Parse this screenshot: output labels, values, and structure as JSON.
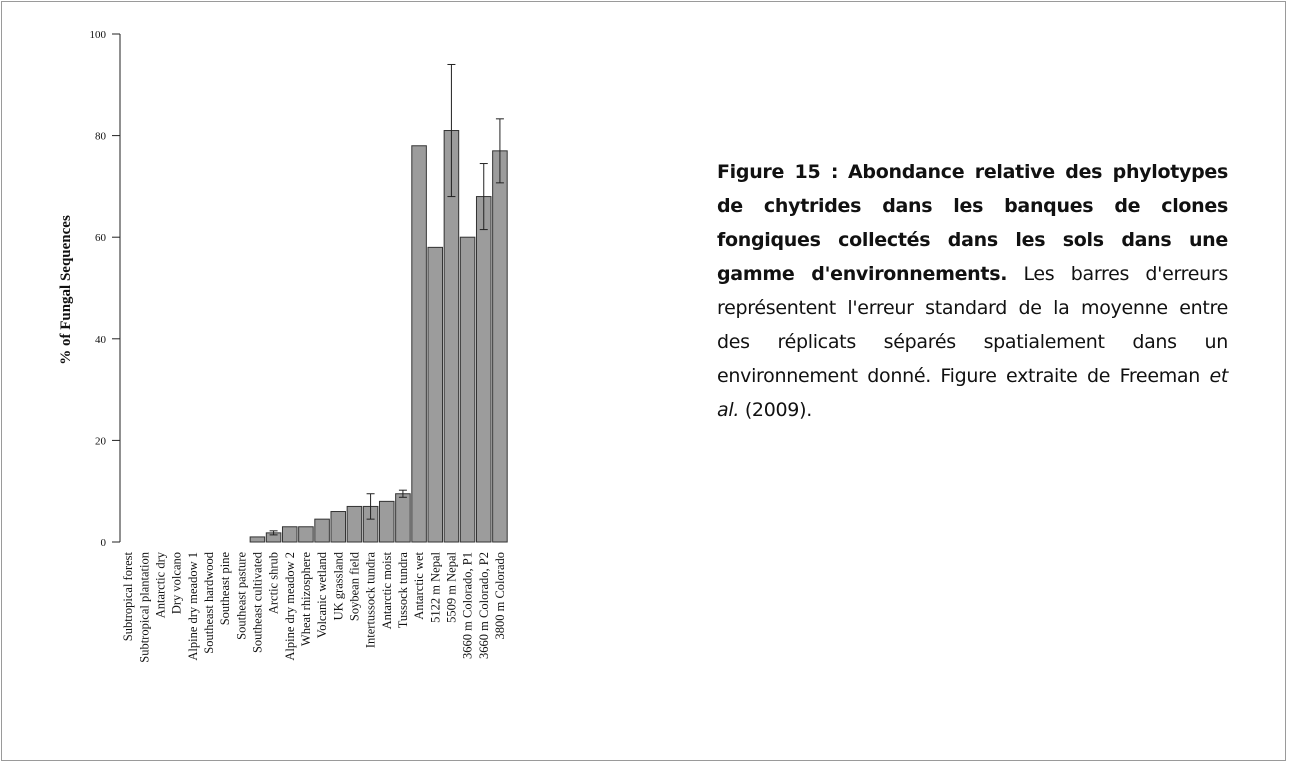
{
  "chart_data": {
    "type": "bar",
    "ylabel": "% of Fungal Sequences",
    "categories": [
      "Subtropical forest",
      "Subtropical plantation",
      "Antarctic dry",
      "Dry  volcano",
      "Alpine dry meadow 1",
      "Southeast hardwood",
      "Southeast pine",
      "Southeast pasture",
      "Southeast cultivated",
      "Arctic shrub",
      "Alpine dry meadow 2",
      "Wheat rhizosphere",
      "Volcanic wetland",
      "UK grassland",
      "Soybean field",
      "Intertussock tundra",
      "Antarctic moist",
      "Tussock tundra",
      "Antarctic wet",
      "5122 m Nepal",
      "5509 m Nepal",
      "3660 m Colorado, P1",
      "3660 m Colorado, P2",
      "3800 m Colorado"
    ],
    "values": [
      0,
      0,
      0,
      0,
      0,
      0,
      0,
      0,
      1,
      1.8,
      3,
      3,
      4.5,
      6,
      7,
      7,
      8,
      9.5,
      78,
      58,
      81,
      60,
      68,
      77
    ],
    "errors": [
      null,
      null,
      null,
      null,
      null,
      null,
      null,
      null,
      null,
      0.4,
      null,
      null,
      null,
      null,
      null,
      2.5,
      null,
      0.7,
      null,
      null,
      13,
      null,
      6.5,
      6.3
    ],
    "color": "#9c9c9c",
    "ylim": [
      0,
      100
    ],
    "yticks": [
      0,
      20,
      40,
      60,
      80,
      100
    ],
    "grid": false
  },
  "caption": {
    "label": "Figure 15 :",
    "title": "Abondance relative des phylotypes de chytrides dans les banques de clones fongiques collectés dans les sols dans une gamme d'environnements.",
    "text": "Les barres d'erreurs représentent l'erreur standard de la moyenne entre des réplicats séparés spatialement dans un environnement donné. Figure extraite de Freeman",
    "italic": "et al.",
    "end": "(2009)."
  }
}
